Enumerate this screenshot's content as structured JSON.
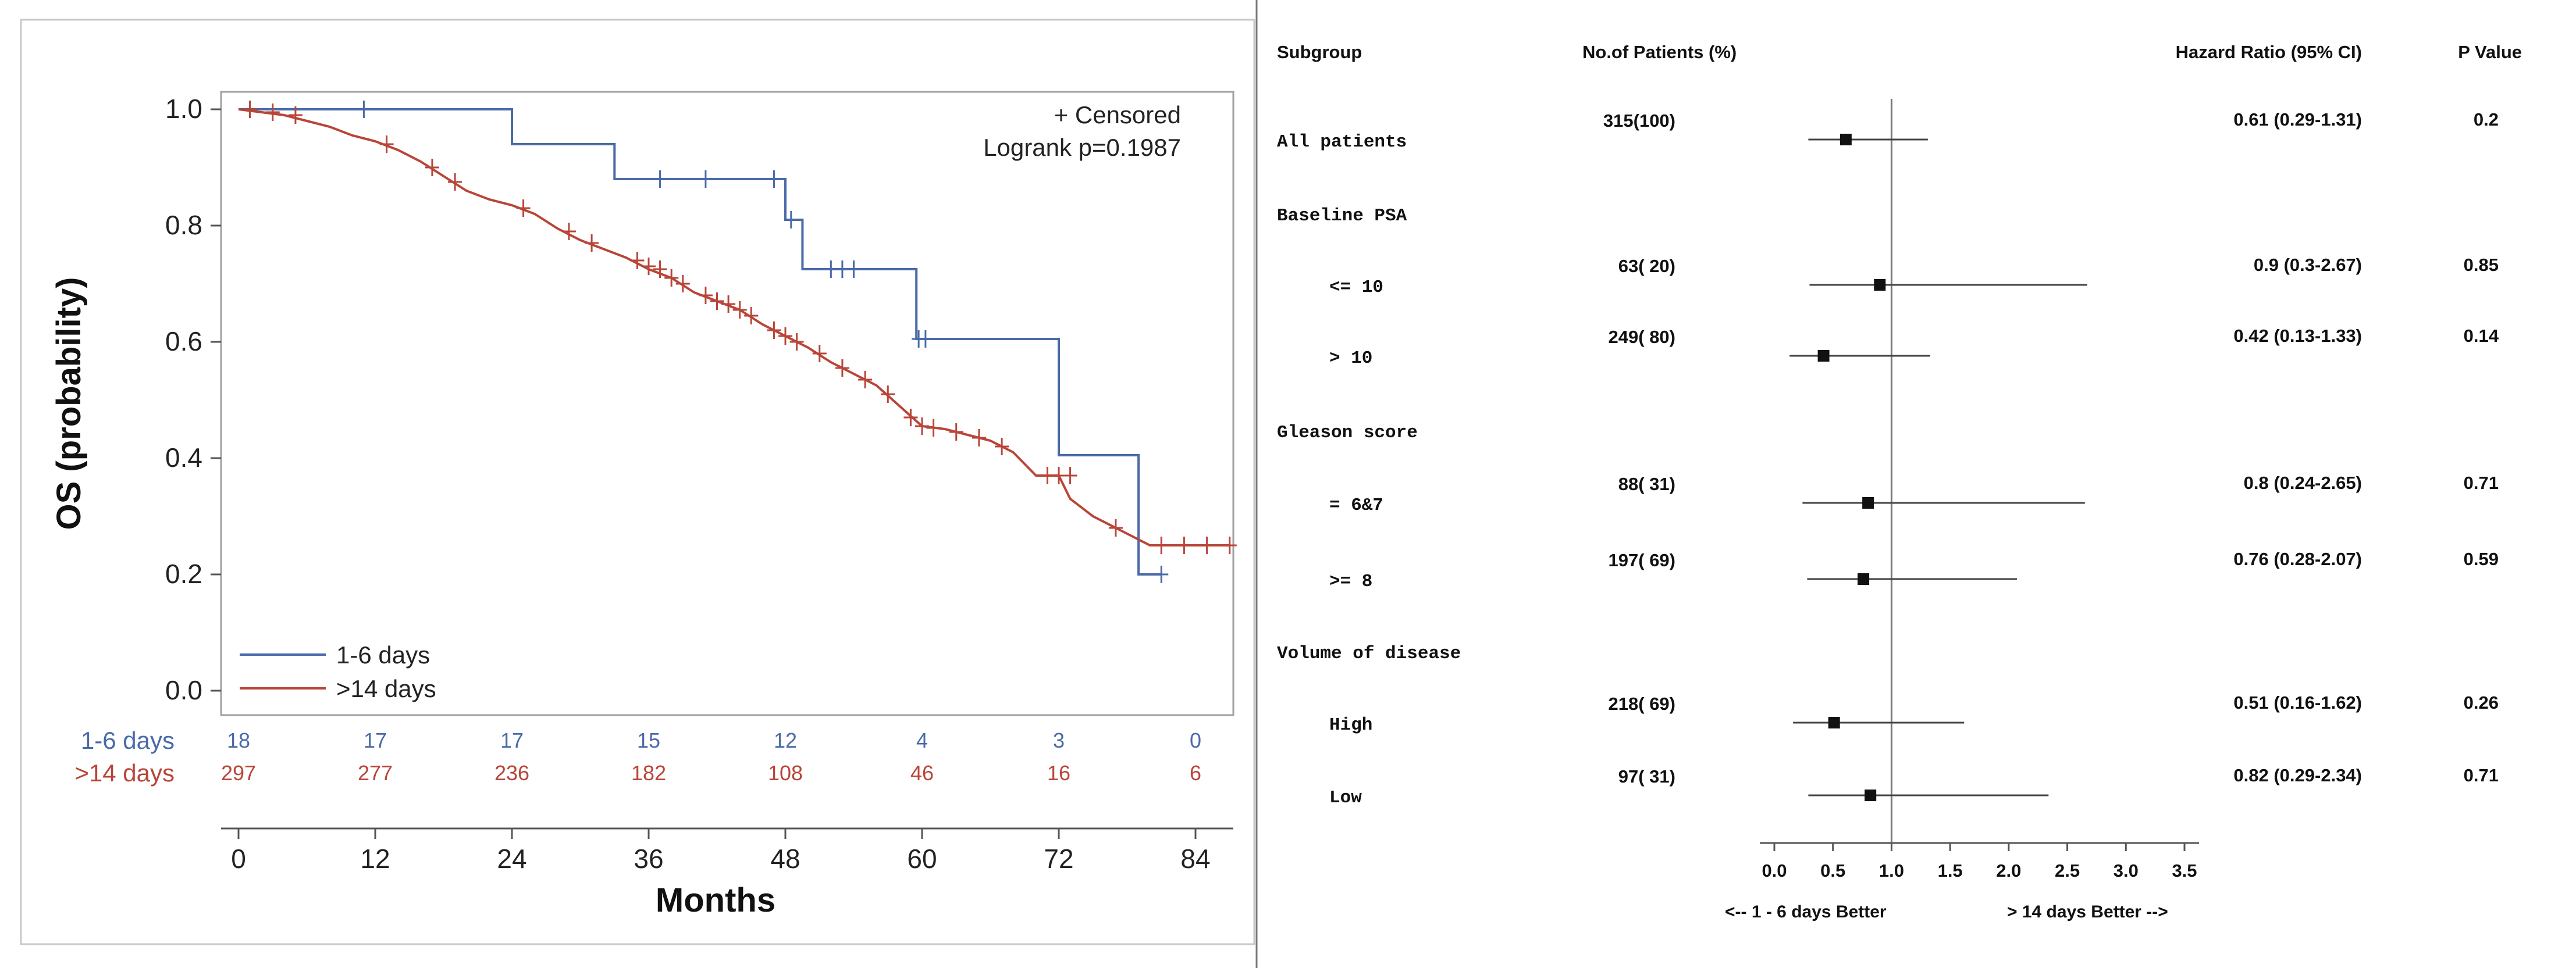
{
  "km": {
    "ylabel": "OS (probability)",
    "xlabel": "Months",
    "legend_censored": "+ Censored",
    "logrank": "Logrank p=0.1987"
  },
  "forest": {
    "headers": {
      "subgroup": "Subgroup",
      "patients": "No.of Patients (%)",
      "hr": "Hazard Ratio (95% CI)",
      "p": "P Value"
    },
    "left_label": "<-- 1 - 6 days Better",
    "right_label": "> 14 days Better -->"
  },
  "chart_data": [
    {
      "type": "line",
      "subtype": "kaplan-meier",
      "xlabel": "Months",
      "ylabel": "OS (probability)",
      "xlim": [
        0,
        87
      ],
      "ylim": [
        0,
        1
      ],
      "xticks": [
        0,
        12,
        24,
        36,
        48,
        60,
        72,
        84
      ],
      "yticks": [
        0.0,
        0.2,
        0.4,
        0.6,
        0.8,
        1.0
      ],
      "ytick_labels": [
        "0.0",
        "0.2",
        "0.4",
        "0.6",
        "0.8",
        "1.0"
      ],
      "annotation": "Logrank p=0.1987",
      "series": [
        {
          "name": "1-6 days",
          "color": "#4a6aa8",
          "steps": [
            [
              0,
              1.0
            ],
            [
              24,
              1.0
            ],
            [
              24,
              0.94
            ],
            [
              33,
              0.94
            ],
            [
              33,
              0.88
            ],
            [
              48,
              0.88
            ],
            [
              48,
              0.81
            ],
            [
              49.5,
              0.81
            ],
            [
              49.5,
              0.725
            ],
            [
              59.5,
              0.725
            ],
            [
              59.5,
              0.605
            ],
            [
              72,
              0.605
            ],
            [
              72,
              0.405
            ],
            [
              79,
              0.405
            ],
            [
              79,
              0.2
            ],
            [
              81,
              0.2
            ]
          ],
          "censors": [
            [
              1,
              1.0
            ],
            [
              11,
              1.0
            ],
            [
              37,
              0.88
            ],
            [
              41,
              0.88
            ],
            [
              47,
              0.88
            ],
            [
              48.5,
              0.81
            ],
            [
              52,
              0.725
            ],
            [
              53,
              0.725
            ],
            [
              54,
              0.725
            ],
            [
              59.7,
              0.605
            ],
            [
              60.3,
              0.605
            ],
            [
              81,
              0.2
            ]
          ],
          "at_risk": [
            18,
            17,
            17,
            15,
            12,
            4,
            3,
            0
          ]
        },
        {
          "name": ">14 days",
          "color": "#b84538",
          "steps": [
            [
              0,
              1.0
            ],
            [
              2,
              0.995
            ],
            [
              4,
              0.99
            ],
            [
              6,
              0.98
            ],
            [
              8,
              0.97
            ],
            [
              10,
              0.955
            ],
            [
              12,
              0.945
            ],
            [
              14,
              0.93
            ],
            [
              16,
              0.91
            ],
            [
              18,
              0.885
            ],
            [
              20,
              0.86
            ],
            [
              22,
              0.845
            ],
            [
              24,
              0.835
            ],
            [
              26,
              0.82
            ],
            [
              28,
              0.795
            ],
            [
              30,
              0.775
            ],
            [
              32,
              0.76
            ],
            [
              34,
              0.745
            ],
            [
              36,
              0.725
            ],
            [
              38,
              0.71
            ],
            [
              40,
              0.685
            ],
            [
              42,
              0.67
            ],
            [
              44,
              0.655
            ],
            [
              46,
              0.63
            ],
            [
              48,
              0.61
            ],
            [
              50,
              0.59
            ],
            [
              52,
              0.565
            ],
            [
              54,
              0.545
            ],
            [
              56,
              0.525
            ],
            [
              58,
              0.49
            ],
            [
              60,
              0.455
            ],
            [
              62,
              0.45
            ],
            [
              64,
              0.44
            ],
            [
              66,
              0.43
            ],
            [
              68,
              0.41
            ],
            [
              70,
              0.37
            ],
            [
              72,
              0.37
            ],
            [
              73,
              0.33
            ],
            [
              75,
              0.3
            ],
            [
              78,
              0.27
            ],
            [
              80,
              0.25
            ],
            [
              87,
              0.25
            ]
          ],
          "censors": [
            [
              1,
              1.0
            ],
            [
              3,
              0.995
            ],
            [
              5,
              0.99
            ],
            [
              13,
              0.94
            ],
            [
              17,
              0.9
            ],
            [
              19,
              0.875
            ],
            [
              25,
              0.83
            ],
            [
              29,
              0.79
            ],
            [
              31,
              0.77
            ],
            [
              35,
              0.74
            ],
            [
              36,
              0.73
            ],
            [
              37,
              0.725
            ],
            [
              38,
              0.71
            ],
            [
              39,
              0.7
            ],
            [
              41,
              0.68
            ],
            [
              42,
              0.67
            ],
            [
              43,
              0.665
            ],
            [
              44,
              0.655
            ],
            [
              45,
              0.645
            ],
            [
              47,
              0.62
            ],
            [
              48,
              0.61
            ],
            [
              49,
              0.6
            ],
            [
              51,
              0.58
            ],
            [
              53,
              0.555
            ],
            [
              55,
              0.535
            ],
            [
              57,
              0.51
            ],
            [
              59,
              0.47
            ],
            [
              60,
              0.455
            ],
            [
              61,
              0.452
            ],
            [
              63,
              0.445
            ],
            [
              65,
              0.435
            ],
            [
              67,
              0.42
            ],
            [
              71,
              0.37
            ],
            [
              72,
              0.37
            ],
            [
              73,
              0.37
            ],
            [
              77,
              0.28
            ],
            [
              81,
              0.25
            ],
            [
              83,
              0.25
            ],
            [
              85,
              0.25
            ],
            [
              87,
              0.25
            ]
          ],
          "at_risk": [
            297,
            277,
            236,
            182,
            108,
            46,
            16,
            6
          ]
        }
      ]
    },
    {
      "type": "forest",
      "xlim": [
        0,
        3.5
      ],
      "xticks": [
        0.0,
        0.5,
        1.0,
        1.5,
        2.0,
        2.5,
        3.0,
        3.5
      ],
      "xtick_labels": [
        "0.0",
        "0.5",
        "1.0",
        "1.5",
        "2.0",
        "2.5",
        "3.0",
        "3.5"
      ],
      "reference": 1.0,
      "rows": [
        {
          "label": "All patients",
          "indent": 0,
          "n": "315(100)",
          "hr": 0.61,
          "lo": 0.29,
          "hi": 1.31,
          "hr_text": "0.61 (0.29-1.31)",
          "p": "0.2"
        },
        {
          "label": "Baseline PSA",
          "indent": 0,
          "header": true
        },
        {
          "label": "<= 10",
          "indent": 1,
          "n": "63( 20)",
          "hr": 0.9,
          "lo": 0.3,
          "hi": 2.67,
          "hr_text": "0.9 (0.3-2.67)",
          "p": "0.85"
        },
        {
          "label": "> 10",
          "indent": 1,
          "n": "249( 80)",
          "hr": 0.42,
          "lo": 0.13,
          "hi": 1.33,
          "hr_text": "0.42 (0.13-1.33)",
          "p": "0.14"
        },
        {
          "label": "Gleason score",
          "indent": 0,
          "header": true
        },
        {
          "label": "= 6&7",
          "indent": 1,
          "n": "88( 31)",
          "hr": 0.8,
          "lo": 0.24,
          "hi": 2.65,
          "hr_text": "0.8 (0.24-2.65)",
          "p": "0.71"
        },
        {
          "label": ">= 8",
          "indent": 1,
          "n": "197( 69)",
          "hr": 0.76,
          "lo": 0.28,
          "hi": 2.07,
          "hr_text": "0.76 (0.28-2.07)",
          "p": "0.59"
        },
        {
          "label": "Volume of disease",
          "indent": 0,
          "header": true
        },
        {
          "label": "High",
          "indent": 1,
          "n": "218( 69)",
          "hr": 0.51,
          "lo": 0.16,
          "hi": 1.62,
          "hr_text": "0.51 (0.16-1.62)",
          "p": "0.26"
        },
        {
          "label": "Low",
          "indent": 1,
          "n": "97( 31)",
          "hr": 0.82,
          "lo": 0.29,
          "hi": 2.34,
          "hr_text": "0.82 (0.29-2.34)",
          "p": "0.71"
        }
      ]
    }
  ]
}
